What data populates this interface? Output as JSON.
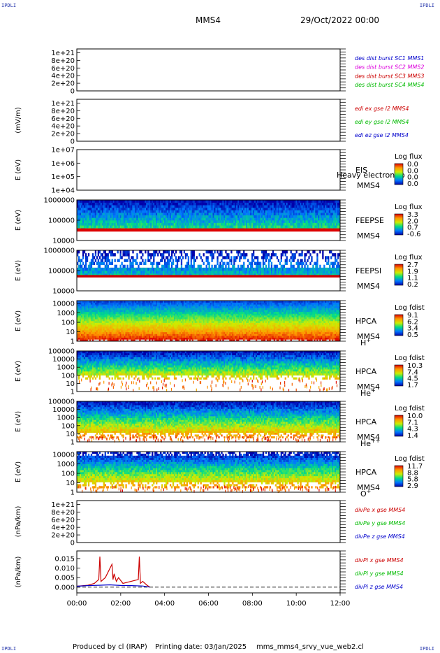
{
  "corner_marks": {
    "top_left": "IPDLI",
    "top_right": "IPDLI",
    "bottom_left": "IPDLI",
    "bottom_right": "IPDLI"
  },
  "header": {
    "spacecraft": "MMS4",
    "date_time": "29/Oct/2022 00:00"
  },
  "footer": {
    "producer": "Produced by cl (IRAP)",
    "printing_date": "Printing date: 03/Jan/2025",
    "file": "mms_mms4_srvy_vue_web2.cl"
  },
  "colors": {
    "red": "#cc0000",
    "green": "#00bb00",
    "blue": "#0000cc",
    "magenta": "#dd00dd"
  },
  "chart_data": [
    {
      "type": "line",
      "ylabel": "",
      "ylim": [
        0,
        1.1e+21
      ],
      "ticks": [
        "0",
        "2e+20",
        "4e+20",
        "6e+20",
        "8e+20",
        "1e+21"
      ],
      "legend": [
        {
          "label": "des dist burst SC1 MMS1",
          "color": "#0000cc"
        },
        {
          "label": "des dist burst SC2 MMS2",
          "color": "#dd00dd"
        },
        {
          "label": "des dist burst SC3 MMS3",
          "color": "#cc0000"
        },
        {
          "label": "des dist burst SC4 MMS4",
          "color": "#00bb00"
        }
      ],
      "series": []
    },
    {
      "type": "line",
      "ylabel": "(mV/m)",
      "ylim": [
        0,
        1.1e+21
      ],
      "ticks": [
        "0",
        "2e+20",
        "4e+20",
        "6e+20",
        "8e+20",
        "1e+21"
      ],
      "legend": [
        {
          "label": "edi ex gse l2 MMS4",
          "color": "#cc0000"
        },
        {
          "label": "edi ey gse l2 MMS4",
          "color": "#00bb00"
        },
        {
          "label": "edi ez gse l2 MMS4",
          "color": "#0000cc"
        }
      ],
      "series": []
    },
    {
      "type": "heatmap",
      "ylabel": "E (eV)",
      "scale": "log",
      "ylim": [
        10000.0,
        10000000.0
      ],
      "ticks": [
        "1e+04",
        "1e+05",
        "1e+06",
        "1e+07"
      ],
      "labels": [
        "EIS",
        "MMS4"
      ],
      "extra_text": "Heavy electron to",
      "colorbar": {
        "title": "Log flux",
        "ticks": [
          "0.0",
          "0.0",
          "0.0",
          "0.0"
        ]
      }
    },
    {
      "type": "heatmap",
      "ylabel": "E (eV)",
      "scale": "log",
      "ylim": [
        10000,
        1000000
      ],
      "ticks": [
        "10000",
        "100000",
        "1000000"
      ],
      "labels": [
        "FEEPSE",
        "MMS4"
      ],
      "colorbar": {
        "title": "Log flux",
        "ticks": [
          "3.3",
          "2.0",
          "0.7",
          "-0.6"
        ]
      }
    },
    {
      "type": "heatmap",
      "ylabel": "E (eV)",
      "scale": "log",
      "ylim": [
        10000,
        1000000
      ],
      "ticks": [
        "10000",
        "100000",
        "1000000"
      ],
      "labels": [
        "FEEPSI",
        "MMS4"
      ],
      "colorbar": {
        "title": "Log flux",
        "ticks": [
          "2.7",
          "1.9",
          "1.1",
          "0.2"
        ]
      }
    },
    {
      "type": "heatmap",
      "ylabel": "E (eV)",
      "scale": "log",
      "ylim": [
        1,
        20000
      ],
      "ticks": [
        "1",
        "10",
        "100",
        "1000",
        "10000"
      ],
      "labels": [
        "HPCA",
        "MMS4"
      ],
      "species": "H",
      "species_sup": "+",
      "colorbar": {
        "title": "Log fdist",
        "ticks": [
          "9.1",
          "6.2",
          "3.4",
          "0.5"
        ]
      }
    },
    {
      "type": "heatmap",
      "ylabel": "E (eV)",
      "scale": "log",
      "ylim": [
        1,
        100000
      ],
      "ticks": [
        "1",
        "10",
        "100",
        "1000",
        "10000",
        "100000"
      ],
      "labels": [
        "HPCA",
        "MMS4"
      ],
      "species": "He",
      "species_sup": "+",
      "colorbar": {
        "title": "Log fdist",
        "ticks": [
          "10.3",
          "7.4",
          "4.5",
          "1.7"
        ]
      }
    },
    {
      "type": "heatmap",
      "ylabel": "E (eV)",
      "scale": "log",
      "ylim": [
        1,
        100000
      ],
      "ticks": [
        "1",
        "10",
        "100",
        "1000",
        "10000",
        "100000"
      ],
      "labels": [
        "HPCA",
        "MMS4"
      ],
      "species": "He",
      "species_sup": "++",
      "colorbar": {
        "title": "Log fdist",
        "ticks": [
          "10.0",
          "7.1",
          "4.3",
          "1.4"
        ]
      }
    },
    {
      "type": "heatmap",
      "ylabel": "E (eV)",
      "scale": "log",
      "ylim": [
        1,
        20000
      ],
      "ticks": [
        "1",
        "10",
        "100",
        "1000",
        "10000"
      ],
      "labels": [
        "HPCA",
        "MMS4"
      ],
      "species": "O",
      "species_sup": "+",
      "colorbar": {
        "title": "Log fdist",
        "ticks": [
          "11.7",
          "8.8",
          "5.8",
          "2.9"
        ]
      }
    },
    {
      "type": "line",
      "ylabel": "(nPa/km)",
      "ylim": [
        0,
        1.1e+21
      ],
      "ticks": [
        "0",
        "2e+20",
        "4e+20",
        "6e+20",
        "8e+20",
        "1e+21"
      ],
      "legend": [
        {
          "label": "divPe x gse MMS4",
          "color": "#cc0000"
        },
        {
          "label": "divPe y gse MMS4",
          "color": "#00bb00"
        },
        {
          "label": "divPe z gse MMS4",
          "color": "#0000cc"
        }
      ],
      "series": []
    },
    {
      "type": "line",
      "ylabel": "(nPa/km)",
      "ylim": [
        -0.003,
        0.019
      ],
      "ticks": [
        "0.000",
        "0.005",
        "0.010",
        "0.015"
      ],
      "legend": [
        {
          "label": "divPi x gse MMS4",
          "color": "#cc0000"
        },
        {
          "label": "divPi y gse MMS4",
          "color": "#00bb00"
        },
        {
          "label": "divPi z gse MMS4",
          "color": "#0000cc"
        }
      ],
      "series": [
        {
          "color": "#cc0000",
          "x": [
            0.0,
            0.5,
            0.8,
            1.0,
            1.05,
            1.1,
            1.3,
            1.6,
            1.65,
            1.7,
            1.8,
            1.9,
            2.1,
            2.8,
            2.85,
            2.9,
            3.0,
            3.2,
            3.33
          ],
          "y": [
            0.0005,
            0.001,
            0.002,
            0.004,
            0.016,
            0.003,
            0.005,
            0.012,
            0.004,
            0.007,
            0.003,
            0.005,
            0.002,
            0.004,
            0.016,
            0.002,
            0.003,
            0.001,
            0.0
          ]
        },
        {
          "color": "#0000cc",
          "x": [
            0.0,
            0.5,
            1.0,
            1.5,
            2.0,
            2.5,
            3.0,
            3.33
          ],
          "y": [
            0.0005,
            0.0008,
            0.001,
            0.0012,
            0.0009,
            0.0008,
            0.0006,
            0.0
          ]
        }
      ]
    }
  ],
  "xaxis": {
    "range_hours": [
      0,
      12
    ],
    "tick_labels": [
      "00:00",
      "02:00",
      "04:00",
      "06:00",
      "08:00",
      "10:00",
      "12:00"
    ]
  }
}
